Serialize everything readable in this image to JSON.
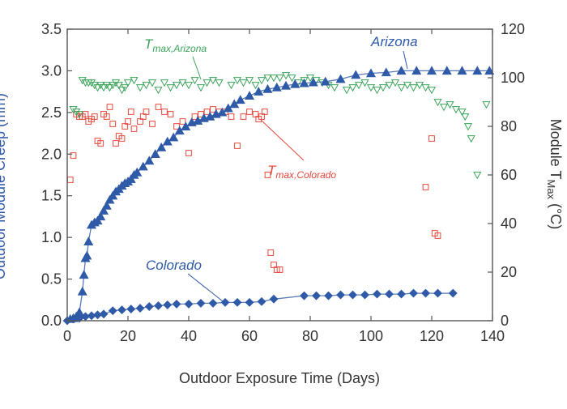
{
  "chart_data": {
    "type": "scatter",
    "title": "",
    "xlabel": "Outdoor Exposure Time (Days)",
    "ylabel_left": "Outdoor Module Creep (mm)",
    "ylabel_right": "Module T",
    "ylabel_right_sub": "Max",
    "ylabel_right_unit": " (°C)",
    "xlim": [
      0,
      140
    ],
    "ylim_left": [
      0,
      3.5
    ],
    "ylim_right": [
      0,
      120
    ],
    "x_ticks": [
      0,
      20,
      40,
      60,
      80,
      100,
      120,
      140
    ],
    "y_left_ticks": [
      "0.0",
      "0.5",
      "1.0",
      "1.5",
      "2.0",
      "2.5",
      "3.0",
      "3.5"
    ],
    "y_right_ticks": [
      "0",
      "20",
      "40",
      "60",
      "80",
      "100",
      "120"
    ],
    "grid": false,
    "colors": {
      "blue": "#2f5aa8",
      "green": "#3aa35a",
      "red": "#e5473b",
      "axis": "#555555"
    },
    "annotations": {
      "arizona": "Arizona",
      "colorado": "Colorado",
      "tmax_arizona_main": "T",
      "tmax_arizona_sub": "max,Arizona",
      "tmax_colorado_main": "T",
      "tmax_colorado_sub": "max,Colorado"
    },
    "series": [
      {
        "name": "Arizona",
        "axis": "left",
        "marker": "triangle-up",
        "color": "#2f5aa8",
        "x": [
          1,
          2,
          3,
          4,
          5,
          5.5,
          6,
          6.5,
          7,
          8,
          9,
          10,
          11,
          12,
          13,
          14,
          15,
          16,
          17,
          18,
          19,
          20,
          21,
          22,
          23,
          25,
          27,
          29,
          31,
          33,
          35,
          37,
          39,
          41,
          43,
          45,
          47,
          49,
          51,
          53,
          55,
          57,
          60,
          63,
          66,
          69,
          72,
          75,
          78,
          81,
          85,
          90,
          95,
          100,
          105,
          110,
          115,
          120,
          125,
          130,
          135,
          139
        ],
        "y": [
          0.02,
          0.03,
          0.05,
          0.1,
          0.35,
          0.55,
          0.75,
          0.78,
          0.95,
          1.15,
          1.18,
          1.2,
          1.25,
          1.32,
          1.38,
          1.45,
          1.5,
          1.55,
          1.58,
          1.62,
          1.65,
          1.67,
          1.7,
          1.75,
          1.78,
          1.85,
          1.92,
          2.0,
          2.08,
          2.15,
          2.2,
          2.28,
          2.33,
          2.38,
          2.4,
          2.43,
          2.45,
          2.48,
          2.5,
          2.55,
          2.6,
          2.65,
          2.7,
          2.75,
          2.78,
          2.8,
          2.82,
          2.84,
          2.85,
          2.86,
          2.87,
          2.9,
          2.95,
          2.97,
          2.98,
          3.0,
          3.0,
          3.0,
          3.0,
          3.0,
          3.0,
          3.0
        ]
      },
      {
        "name": "Colorado",
        "axis": "left",
        "marker": "diamond",
        "color": "#2f5aa8",
        "x": [
          0,
          2,
          4,
          6,
          8,
          10,
          12,
          15,
          18,
          21,
          24,
          27,
          30,
          33,
          36,
          40,
          44,
          48,
          52,
          56,
          60,
          64,
          68,
          78,
          82,
          86,
          90,
          94,
          98,
          102,
          106,
          110,
          114,
          118,
          122,
          127
        ],
        "y": [
          0.0,
          0.02,
          0.03,
          0.05,
          0.06,
          0.07,
          0.08,
          0.12,
          0.13,
          0.14,
          0.15,
          0.17,
          0.18,
          0.19,
          0.2,
          0.2,
          0.21,
          0.21,
          0.22,
          0.22,
          0.22,
          0.23,
          0.26,
          0.3,
          0.3,
          0.3,
          0.31,
          0.31,
          0.31,
          0.32,
          0.32,
          0.32,
          0.33,
          0.33,
          0.33,
          0.33
        ]
      },
      {
        "name": "Tmax,Arizona",
        "axis": "right",
        "marker": "triangle-down",
        "color": "#3aa35a",
        "x": [
          2,
          3,
          4,
          5,
          6,
          7,
          8,
          9,
          10,
          11,
          12,
          13,
          14,
          15,
          16,
          17,
          18,
          19,
          20,
          22,
          24,
          26,
          28,
          30,
          32,
          34,
          36,
          38,
          40,
          42,
          44,
          46,
          48,
          50,
          54,
          56,
          58,
          60,
          62,
          64,
          66,
          68,
          70,
          72,
          74,
          76,
          78,
          80,
          82,
          84,
          86,
          88,
          92,
          94,
          96,
          98,
          100,
          102,
          104,
          106,
          108,
          110,
          112,
          114,
          116,
          118,
          120,
          122,
          124,
          126,
          128,
          130,
          131,
          132,
          133,
          135,
          138
        ],
        "y": [
          87,
          86,
          85,
          99,
          98,
          98,
          98,
          97,
          96,
          97,
          96,
          97,
          96,
          97,
          98,
          97,
          95,
          96,
          98,
          99,
          96,
          97,
          98,
          95,
          98,
          96,
          97,
          98,
          97,
          99,
          96,
          98,
          99,
          98,
          97,
          99,
          98,
          99,
          97,
          99,
          100,
          100,
          100,
          101,
          100,
          98,
          99,
          100,
          99,
          98,
          97,
          96,
          95,
          96,
          97,
          98,
          96,
          95,
          96,
          97,
          98,
          96,
          97,
          96,
          97,
          96,
          95,
          90,
          88,
          89,
          87,
          86,
          84,
          80,
          75,
          60,
          89
        ]
      },
      {
        "name": "Tmax,Colorado",
        "axis": "right",
        "marker": "square",
        "color": "#e5473b",
        "x": [
          1,
          2,
          3,
          4,
          5,
          6,
          7,
          8,
          9,
          10,
          11,
          12,
          13,
          14,
          15,
          16,
          17,
          18,
          19,
          20,
          21,
          22,
          24,
          25,
          26,
          28,
          30,
          32,
          34,
          36,
          38,
          40,
          42,
          44,
          46,
          48,
          50,
          52,
          54,
          56,
          58,
          60,
          62,
          63,
          64,
          65,
          66,
          67,
          68,
          69,
          70,
          118,
          120,
          121,
          122
        ],
        "y": [
          58,
          68,
          85,
          84,
          84,
          85,
          82,
          83,
          84,
          74,
          73,
          85,
          84,
          88,
          81,
          73,
          76,
          75,
          80,
          82,
          86,
          79,
          82,
          84,
          86,
          81,
          88,
          86,
          85,
          80,
          82,
          69,
          84,
          85,
          86,
          87,
          86,
          86,
          84,
          72,
          84,
          86,
          85,
          83,
          84,
          86,
          60,
          28,
          23,
          21,
          21,
          55,
          75,
          36,
          35
        ]
      }
    ]
  }
}
